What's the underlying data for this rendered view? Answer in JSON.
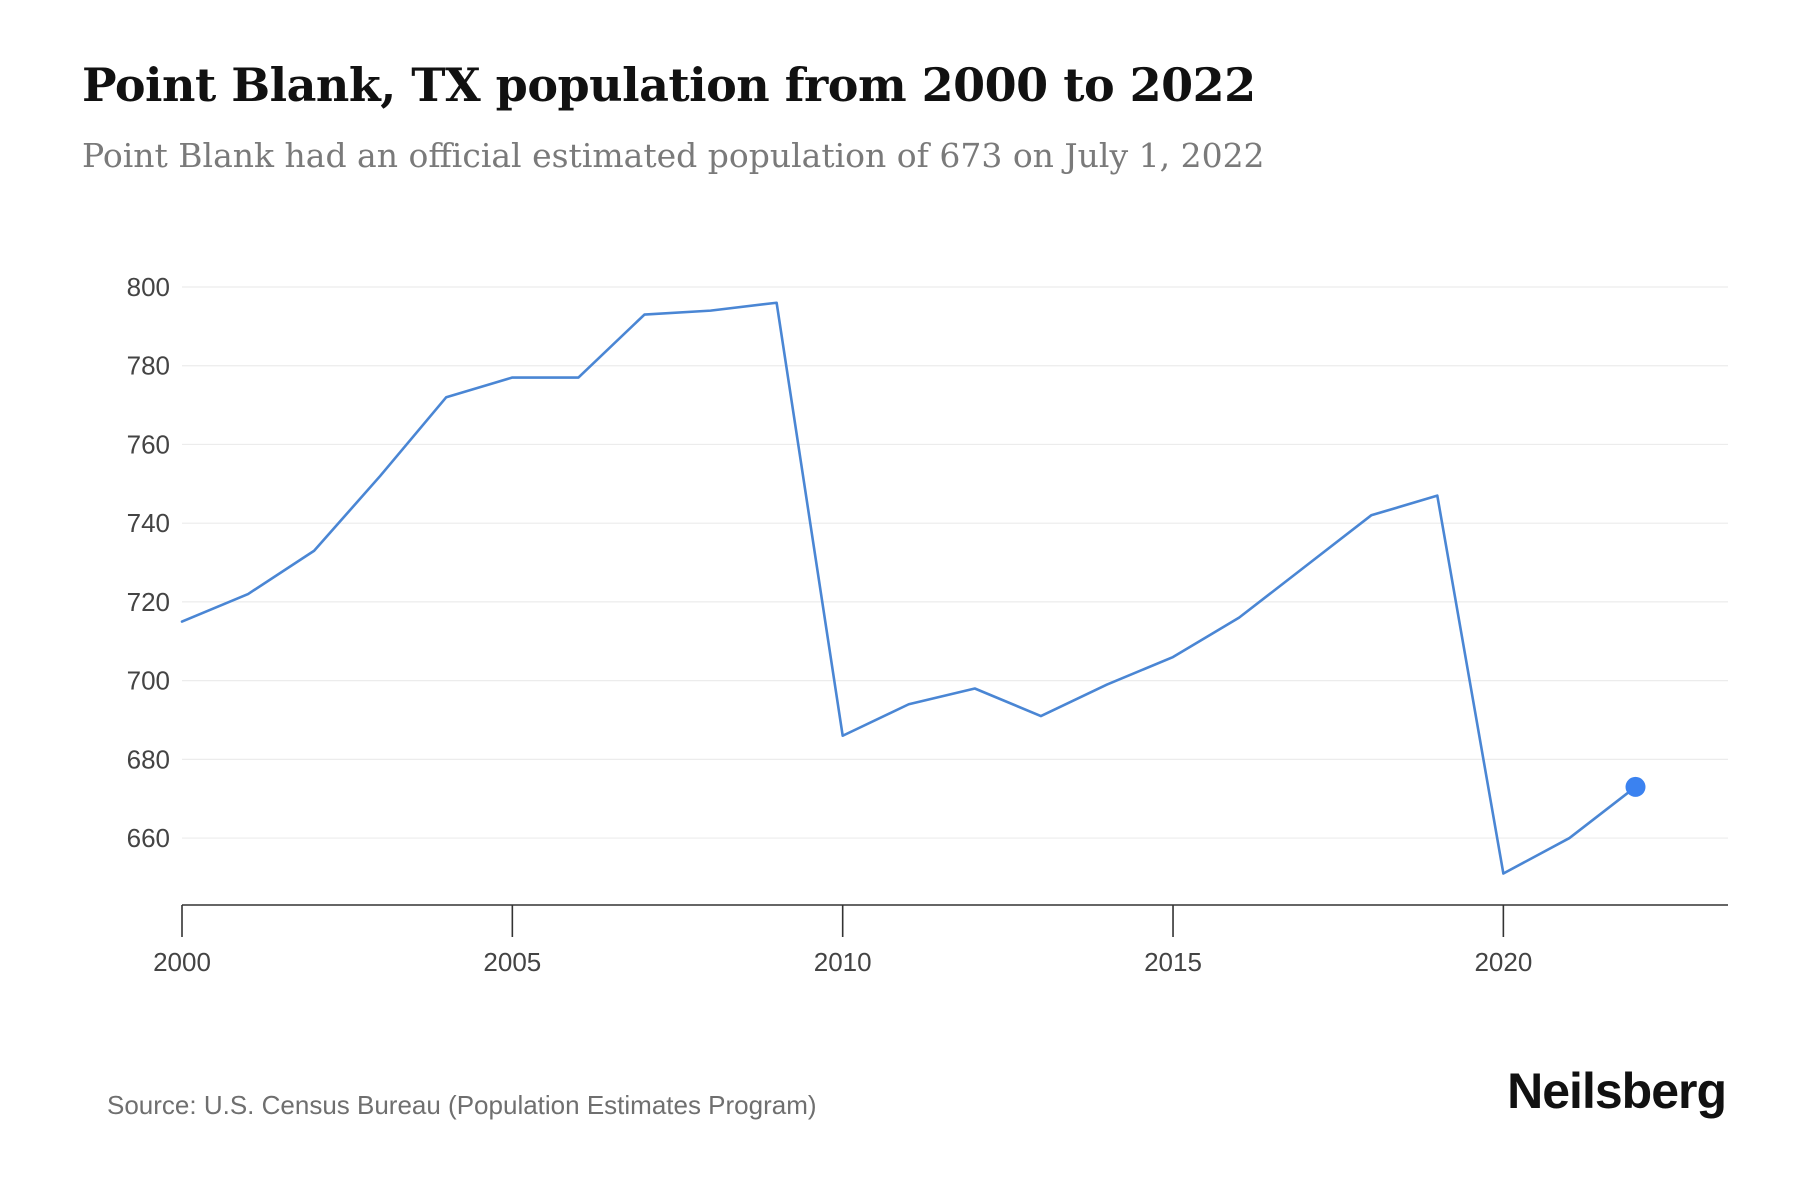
{
  "header": {
    "title": "Point Blank, TX population from 2000 to 2022",
    "subtitle": "Point Blank had an official estimated population of 673 on July 1, 2022"
  },
  "footer": {
    "source": "Source: U.S. Census Bureau (Population Estimates Program)",
    "brand": "Neilsberg"
  },
  "colors": {
    "line": "#4a86d4",
    "marker": "#3b82f0",
    "grid": "#ececec",
    "axis": "#333333",
    "tick_text": "#444444"
  },
  "chart_data": {
    "type": "line",
    "title": "Point Blank, TX population from 2000 to 2022",
    "xlabel": "",
    "ylabel": "",
    "x": [
      2000,
      2001,
      2002,
      2003,
      2004,
      2005,
      2006,
      2007,
      2008,
      2009,
      2010,
      2011,
      2012,
      2013,
      2014,
      2015,
      2016,
      2017,
      2018,
      2019,
      2020,
      2021,
      2022
    ],
    "series": [
      {
        "values": [
          715,
          722,
          733,
          752,
          772,
          777,
          777,
          793,
          794,
          796,
          686,
          694,
          698,
          691,
          699,
          706,
          716,
          729,
          742,
          747,
          651,
          660,
          673
        ]
      }
    ],
    "xlim": [
      2000,
      2023.4
    ],
    "ylim": [
      643,
      800
    ],
    "x_ticks": [
      "2000",
      "2005",
      "2010",
      "2015",
      "2020"
    ],
    "y_ticks": [
      "660",
      "680",
      "700",
      "720",
      "740",
      "760",
      "780",
      "800"
    ],
    "grid": true,
    "highlight_last_point": true
  }
}
